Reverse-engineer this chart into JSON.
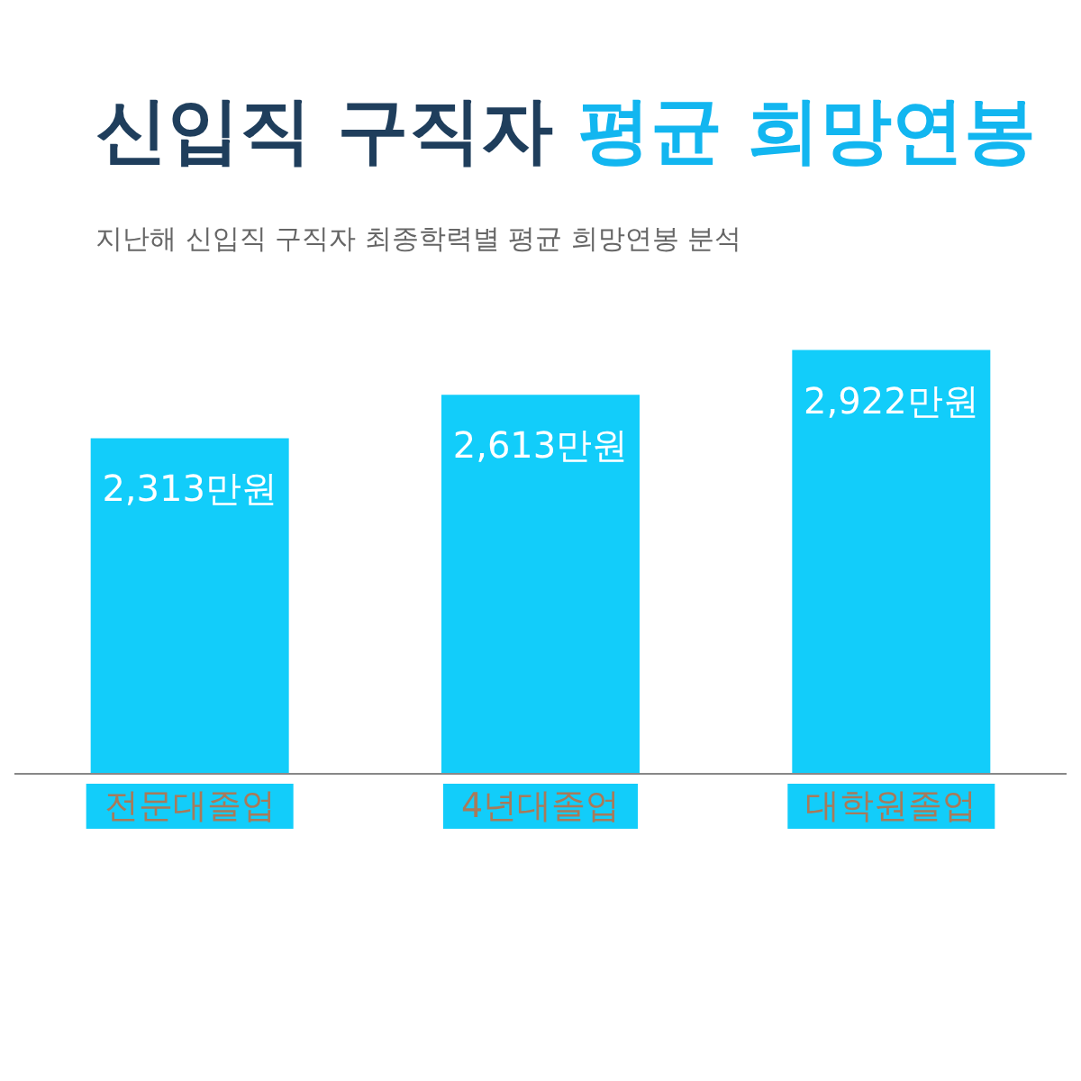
{
  "chart_data": {
    "type": "bar",
    "title": "신입직 구직자 평균 희망연봉",
    "subtitle": "지난해 신입직 구직자 최종학력별 평균 희망연봉 분석",
    "categories": [
      "전문대졸업",
      "4년대졸업",
      "대학원졸업"
    ],
    "values": [
      2313,
      2613,
      2922
    ],
    "value_labels": [
      "2,313만원",
      "2,613만원",
      "2,922만원"
    ],
    "color": "#12cdfa"
  }
}
